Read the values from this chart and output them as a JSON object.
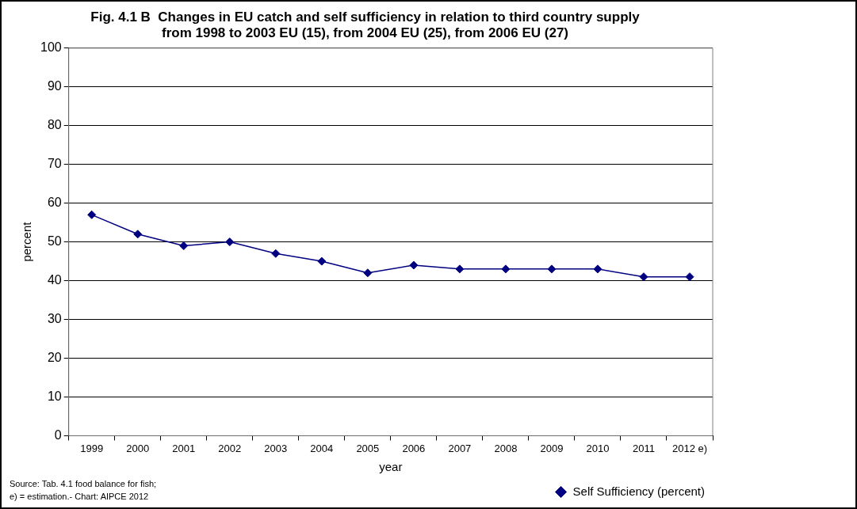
{
  "chart_data": {
    "type": "line",
    "title": "Fig. 4.1 B  Changes in EU catch and self sufficiency in relation to third country supply from 1998 to 2003 EU (15), from 2004 EU (25), from 2006 EU (27)",
    "xlabel": "year",
    "ylabel": "percent",
    "categories": [
      "1999",
      "2000",
      "2001",
      "2002",
      "2003",
      "2004",
      "2005",
      "2006",
      "2007",
      "2008",
      "2009",
      "2010",
      "2011",
      "2012 e)"
    ],
    "series": [
      {
        "name": "Self Sufficiency (percent)",
        "color": "#000080",
        "values": [
          57,
          52,
          49,
          50,
          47,
          45,
          42,
          44,
          43,
          43,
          43,
          43,
          41,
          41
        ]
      }
    ],
    "ylim": [
      0,
      100
    ],
    "yticks": [
      0,
      10,
      20,
      30,
      40,
      50,
      60,
      70,
      80,
      90,
      100
    ],
    "grid": "y",
    "legend": "bottom right",
    "marker": "diamond",
    "line_style": "solid",
    "annotations": [
      "Source: Tab. 4.1 food balance for fish;",
      "e) = estimation.- Chart: AIPCE 2012"
    ]
  }
}
